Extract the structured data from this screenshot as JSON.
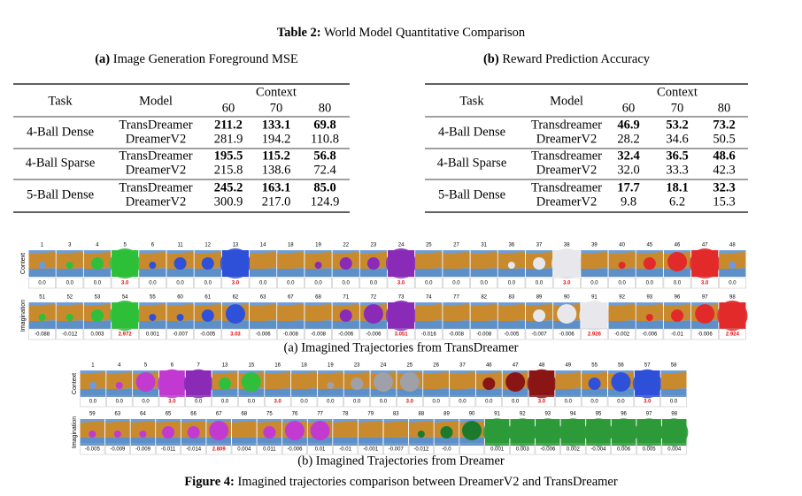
{
  "header": {
    "label": "Table 2:",
    "title": "World Model Quantitative Comparison"
  },
  "table_a": {
    "label": "(a)",
    "caption": "Image Generation Foreground MSE",
    "columns": {
      "task": "Task",
      "model": "Model",
      "context": "Context",
      "contexts": [
        "60",
        "70",
        "80"
      ]
    },
    "groups": [
      {
        "task": "4-Ball Dense",
        "rows": [
          {
            "model": "TransDreamer",
            "values": [
              "211.2",
              "133.1",
              "69.8"
            ]
          },
          {
            "model": "DreamerV2",
            "values": [
              "281.9",
              "194.2",
              "110.8"
            ]
          }
        ]
      },
      {
        "task": "4-Ball Sparse",
        "rows": [
          {
            "model": "TransDreamer",
            "values": [
              "195.5",
              "115.2",
              "56.8"
            ]
          },
          {
            "model": "DreamerV2",
            "values": [
              "215.8",
              "138.6",
              "72.4"
            ]
          }
        ]
      },
      {
        "task": "5-Ball Dense",
        "rows": [
          {
            "model": "TransDreamer",
            "values": [
              "245.2",
              "163.1",
              "85.0"
            ]
          },
          {
            "model": "DreamerV2",
            "values": [
              "300.9",
              "217.0",
              "124.9"
            ]
          }
        ]
      }
    ]
  },
  "table_b": {
    "label": "(b)",
    "caption": "Reward Prediction Accuracy",
    "columns": {
      "task": "Task",
      "model": "Model",
      "context": "Context",
      "contexts": [
        "60",
        "70",
        "80"
      ]
    },
    "groups": [
      {
        "task": "4-Ball Dense",
        "rows": [
          {
            "model": "Transdreamer",
            "values": [
              "46.9",
              "53.2",
              "73.2"
            ]
          },
          {
            "model": "DreamerV2",
            "values": [
              "28.2",
              "34.6",
              "50.5"
            ]
          }
        ]
      },
      {
        "task": "4-Ball Sparse",
        "rows": [
          {
            "model": "Transdreamer",
            "values": [
              "32.4",
              "36.5",
              "48.6"
            ]
          },
          {
            "model": "DreamerV2",
            "values": [
              "32.0",
              "33.3",
              "42.3"
            ]
          }
        ]
      },
      {
        "task": "5-Ball Dense",
        "rows": [
          {
            "model": "Transdreamer",
            "values": [
              "17.7",
              "18.1",
              "32.3"
            ]
          },
          {
            "model": "DreamerV2",
            "values": [
              "9.8",
              "6.2",
              "15.3"
            ]
          }
        ]
      }
    ]
  },
  "figure": {
    "label": "Figure 4:",
    "caption": "Imagined trajectories comparison between DreamerV2 and TransDreamer",
    "panels": [
      {
        "label": "(a) Imagined Trajectories from TransDreamer",
        "rows": [
          {
            "name": "Context",
            "frames": [
              "1",
              "3",
              "4",
              "5",
              "6",
              "11",
              "12",
              "13",
              "14",
              "18",
              "19",
              "22",
              "23",
              "24",
              "25",
              "27",
              "31",
              "36",
              "37",
              "38",
              "39",
              "40",
              "45",
              "46",
              "47",
              "48"
            ],
            "rewards": [
              "0.0",
              "0.0",
              "0.0",
              "3.0",
              "0.0",
              "0.0",
              "0.0",
              "3.0",
              "0.0",
              "0.0",
              "0.0",
              "0.0",
              "0.0",
              "3.0",
              "0.0",
              "0.0",
              "0.0",
              "0.0",
              "0.0",
              "3.0",
              "0.0",
              "0.0",
              "0.0",
              "0.0",
              "3.0",
              "0.0"
            ]
          },
          {
            "name": "Imagination",
            "frames": [
              "51",
              "52",
              "53",
              "54",
              "55",
              "60",
              "61",
              "62",
              "63",
              "67",
              "68",
              "71",
              "72",
              "73",
              "74",
              "77",
              "82",
              "83",
              "89",
              "90",
              "91",
              "92",
              "93",
              "96",
              "97",
              "98"
            ],
            "rewards": [
              "-0.088",
              "-0.012",
              "0.003",
              "2.972",
              "0.001",
              "-0.007",
              "-0.005",
              "3.03",
              "-0.006",
              "-0.008",
              "-0.008",
              "-0.006",
              "-0.006",
              "3.051",
              "-0.016",
              "-0.008",
              "-0.008",
              "-0.005",
              "-0.007",
              "-0.006",
              "2.926",
              "-0.002",
              "-0.006",
              "-0.01",
              "-0.006",
              "2.924"
            ]
          }
        ]
      },
      {
        "label": "(b) Imagined Trajectories from Dreamer",
        "rows": [
          {
            "name": "Context",
            "frames": [
              "1",
              "4",
              "5",
              "6",
              "7",
              "13",
              "15",
              "16",
              "18",
              "19",
              "23",
              "24",
              "25",
              "26",
              "37",
              "46",
              "47",
              "48",
              "49",
              "55",
              "56",
              "57",
              "58"
            ],
            "rewards": [
              "0.0",
              "0.0",
              "0.0",
              "3.0",
              "0.0",
              "0.0",
              "0.0",
              "3.0",
              "0.0",
              "0.0",
              "0.0",
              "0.0",
              "3.0",
              "0.0",
              "0.0",
              "0.0",
              "0.0",
              "3.0",
              "0.0",
              "0.0",
              "0.0",
              "3.0",
              "0.0"
            ]
          },
          {
            "name": "Imagination",
            "frames": [
              "59",
              "63",
              "64",
              "65",
              "66",
              "67",
              "68",
              "75",
              "76",
              "77",
              "78",
              "79",
              "83",
              "88",
              "89",
              "90",
              "91",
              "92",
              "93",
              "94",
              "95",
              "96",
              "97",
              "98"
            ],
            "rewards": [
              "-0.005",
              "-0.009",
              "-0.009",
              "-0.011",
              "-0.014",
              "2.809",
              "0.004",
              "0.011",
              "-0.006",
              "0.01",
              "-0.01",
              "-0.001",
              "-0.007",
              "-0.012",
              "-0.0",
              null,
              "0.001",
              "0.003",
              "-0.006",
              "0.002",
              "-0.004",
              "0.006",
              "0.005",
              "0.004"
            ]
          }
        ]
      }
    ]
  }
}
